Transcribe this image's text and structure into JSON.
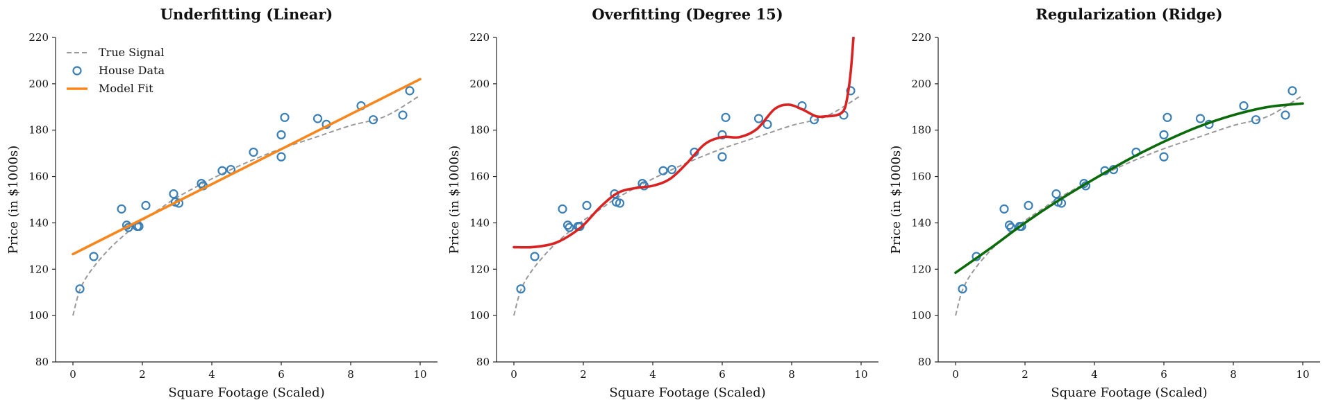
{
  "colors": {
    "true_signal": "#999999",
    "points": "#3a7fb5",
    "linear": "#f7861c",
    "poly15": "#d92323",
    "ridge": "#0b6b0b"
  },
  "legend": {
    "true_signal": "True Signal",
    "house_data": "House Data",
    "model_fit": "Model Fit"
  },
  "chart_data": [
    {
      "type": "scatter",
      "title": "Underfitting (Linear)",
      "xlabel": "Square Footage (Scaled)",
      "ylabel": "Price (in $1000s)",
      "xlim": [
        -0.5,
        10.5
      ],
      "ylim": [
        80,
        220
      ],
      "xticks": [
        0,
        2,
        4,
        6,
        8,
        10
      ],
      "yticks": [
        80,
        100,
        120,
        140,
        160,
        180,
        200,
        220
      ],
      "grid": false,
      "legend_position": "top-left",
      "true_signal": {
        "x": [
          0,
          0.2,
          0.5,
          1,
          1.5,
          2,
          2.5,
          3,
          4,
          5,
          6,
          7,
          8,
          9,
          10
        ],
        "y": [
          100,
          111,
          119,
          128,
          135,
          141,
          146,
          151,
          159,
          166,
          172,
          177,
          182,
          186,
          195
        ]
      },
      "points": {
        "x": [
          0.2,
          0.6,
          1.4,
          1.55,
          1.6,
          1.85,
          1.9,
          2.1,
          2.9,
          2.95,
          3.05,
          3.7,
          3.75,
          4.3,
          4.55,
          5.2,
          6.0,
          6.0,
          6.1,
          7.05,
          7.3,
          8.3,
          8.65,
          9.5,
          9.7
        ],
        "y": [
          111.5,
          125.5,
          146,
          139,
          138,
          138.5,
          138.5,
          147.5,
          152.5,
          149,
          148.5,
          157,
          156,
          162.5,
          163,
          170.5,
          168.5,
          178,
          185.5,
          185,
          182.5,
          190.5,
          184.5,
          186.5,
          197
        ]
      },
      "model_fit": {
        "x": [
          0,
          10
        ],
        "y": [
          126.5,
          202
        ]
      }
    },
    {
      "type": "scatter",
      "title": "Overfitting (Degree 15)",
      "xlabel": "Square Footage (Scaled)",
      "ylabel": "Price (in $1000s)",
      "xlim": [
        -0.5,
        10.5
      ],
      "ylim": [
        80,
        220
      ],
      "xticks": [
        0,
        2,
        4,
        6,
        8,
        10
      ],
      "yticks": [
        80,
        100,
        120,
        140,
        160,
        180,
        200,
        220
      ],
      "grid": false,
      "true_signal": {
        "x": [
          0,
          0.2,
          0.5,
          1,
          1.5,
          2,
          2.5,
          3,
          4,
          5,
          6,
          7,
          8,
          9,
          10
        ],
        "y": [
          100,
          111,
          119,
          128,
          135,
          141,
          146,
          151,
          159,
          166,
          172,
          177,
          182,
          186,
          195
        ]
      },
      "points": {
        "x": [
          0.2,
          0.6,
          1.4,
          1.55,
          1.6,
          1.85,
          1.9,
          2.1,
          2.9,
          2.95,
          3.05,
          3.7,
          3.75,
          4.3,
          4.55,
          5.2,
          6.0,
          6.0,
          6.1,
          7.05,
          7.3,
          8.3,
          8.65,
          9.5,
          9.7
        ],
        "y": [
          111.5,
          125.5,
          146,
          139,
          138,
          138.5,
          138.5,
          147.5,
          152.5,
          149,
          148.5,
          157,
          156,
          162.5,
          163,
          170.5,
          168.5,
          178,
          185.5,
          185,
          182.5,
          190.5,
          184.5,
          186.5,
          197
        ]
      },
      "model_fit": {
        "x": [
          0,
          0.5,
          1.0,
          1.3,
          1.6,
          2.0,
          2.5,
          3.0,
          3.5,
          4.0,
          4.5,
          5.0,
          5.5,
          6.0,
          6.5,
          7.0,
          7.5,
          7.9,
          8.3,
          8.7,
          9.0,
          9.3,
          9.5,
          9.6,
          9.7,
          9.78
        ],
        "y": [
          129.5,
          129.5,
          130.5,
          132,
          134.5,
          139,
          147,
          153,
          155,
          156,
          159,
          166,
          174,
          177,
          177,
          180.5,
          189,
          191,
          189,
          186,
          186,
          186.5,
          188.5,
          194,
          205,
          220
        ]
      }
    },
    {
      "type": "scatter",
      "title": "Regularization (Ridge)",
      "xlabel": "Square Footage (Scaled)",
      "ylabel": "Price (in $1000s)",
      "xlim": [
        -0.5,
        10.5
      ],
      "ylim": [
        80,
        220
      ],
      "xticks": [
        0,
        2,
        4,
        6,
        8,
        10
      ],
      "yticks": [
        80,
        100,
        120,
        140,
        160,
        180,
        200,
        220
      ],
      "grid": false,
      "true_signal": {
        "x": [
          0,
          0.2,
          0.5,
          1,
          1.5,
          2,
          2.5,
          3,
          4,
          5,
          6,
          7,
          8,
          9,
          10
        ],
        "y": [
          100,
          111,
          119,
          128,
          135,
          141,
          146,
          151,
          159,
          166,
          172,
          177,
          182,
          186,
          195
        ]
      },
      "points": {
        "x": [
          0.2,
          0.6,
          1.4,
          1.55,
          1.6,
          1.85,
          1.9,
          2.1,
          2.9,
          2.95,
          3.05,
          3.7,
          3.75,
          4.3,
          4.55,
          5.2,
          6.0,
          6.0,
          6.1,
          7.05,
          7.3,
          8.3,
          8.65,
          9.5,
          9.7
        ],
        "y": [
          111.5,
          125.5,
          146,
          139,
          138,
          138.5,
          138.5,
          147.5,
          152.5,
          149,
          148.5,
          157,
          156,
          162.5,
          163,
          170.5,
          168.5,
          178,
          185.5,
          185,
          182.5,
          190.5,
          184.5,
          186.5,
          197
        ]
      },
      "model_fit": {
        "x": [
          0,
          1,
          2,
          3,
          4,
          5,
          6,
          7,
          8,
          9,
          10
        ],
        "y": [
          118.5,
          129,
          140,
          150,
          159,
          167.5,
          175,
          181.5,
          186.5,
          190,
          191.5
        ]
      }
    }
  ]
}
